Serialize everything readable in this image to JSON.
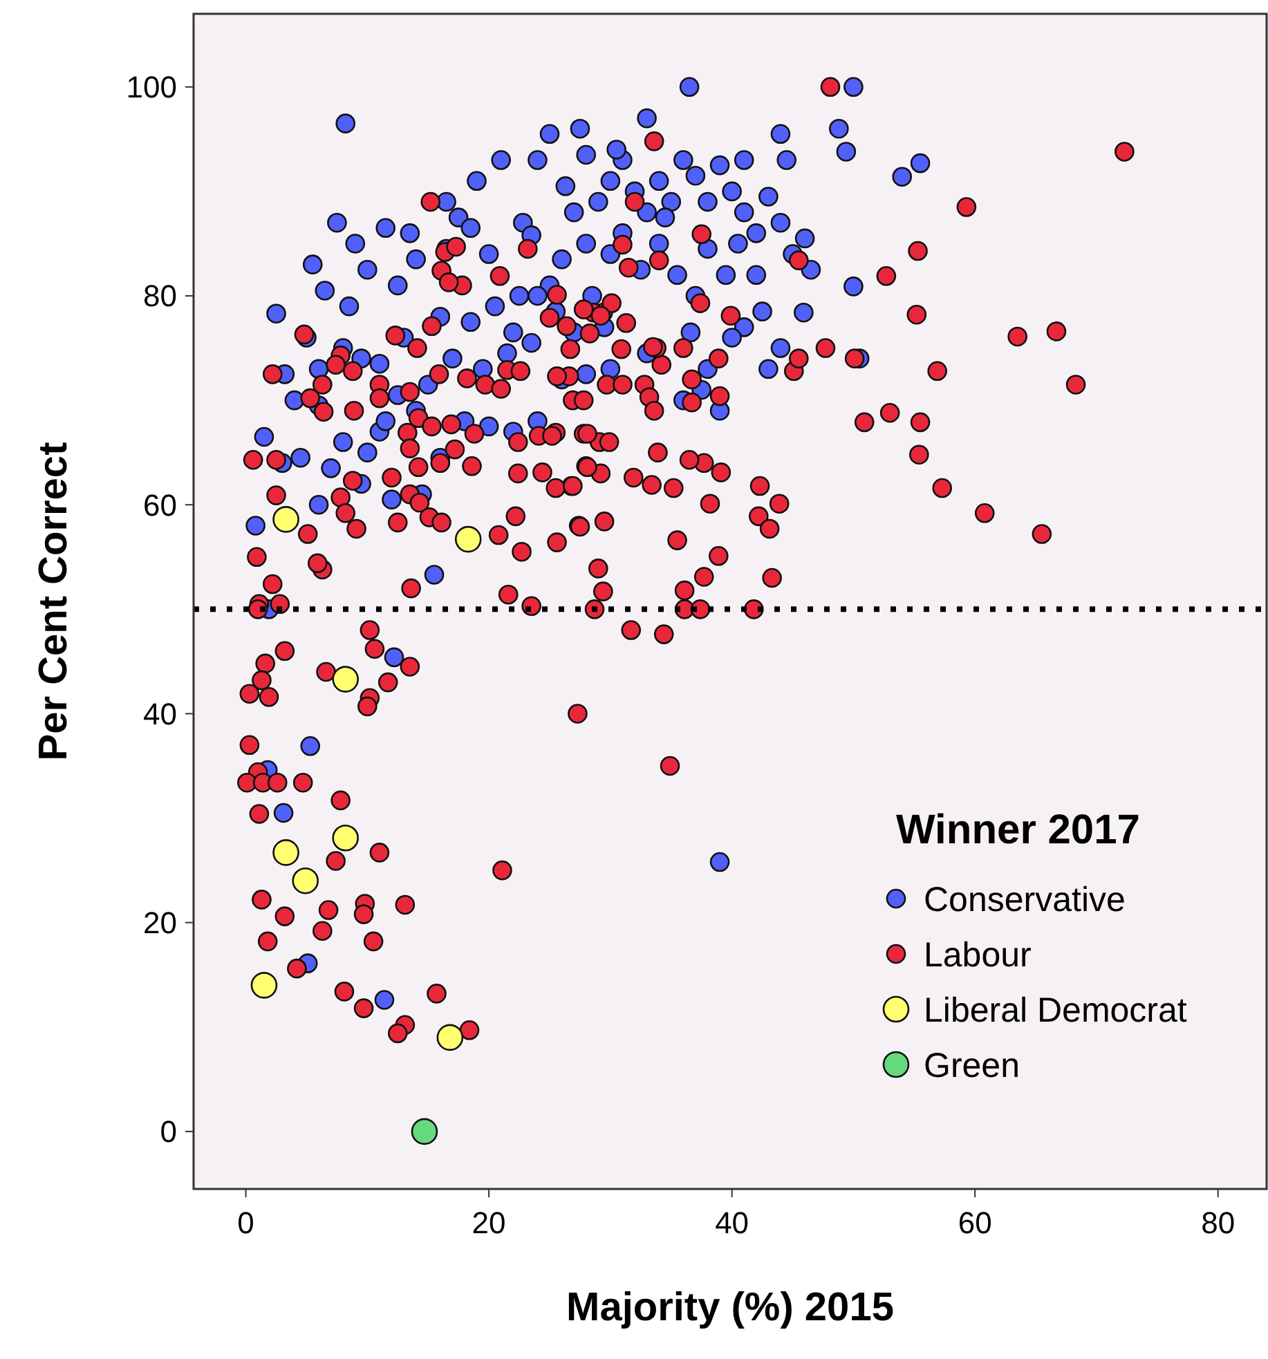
{
  "chart_data": {
    "type": "scatter",
    "xlabel": "Majority (%) 2015",
    "ylabel": "Per Cent Correct",
    "legend_title": "Winner 2017",
    "legend": "bottom right",
    "marker": "circle",
    "grid": false,
    "xlim": [
      -4.3,
      84
    ],
    "ylim": [
      -5.5,
      107
    ],
    "xticks": [
      0,
      20,
      40,
      60,
      80
    ],
    "yticks": [
      0,
      20,
      40,
      60,
      80,
      100
    ],
    "ref_lines": [
      {
        "axis": "y",
        "value": 50,
        "color": "#000000",
        "line_style": "dotted"
      }
    ],
    "series": [
      {
        "name": "Conservative",
        "color": "#5060f8",
        "x": [
          8.2,
          36.5,
          50,
          49.4,
          48.8,
          54,
          55.5,
          41,
          44,
          44.5,
          33,
          27.5,
          25,
          24,
          21,
          19,
          17.5,
          18.5,
          22.8,
          16.5,
          7.5,
          9,
          11.5,
          13.5,
          14,
          10,
          12.5,
          8.5,
          6.5,
          2.5,
          5,
          1.5,
          0.8,
          3.2,
          4,
          6,
          3,
          4.5,
          7,
          8,
          10,
          11,
          12.5,
          14,
          15,
          17,
          19.5,
          21.5,
          23.5,
          22.5,
          25,
          26,
          28,
          27,
          29,
          30,
          31,
          32,
          33,
          34,
          35,
          36,
          37,
          38,
          39,
          40,
          41,
          42,
          43,
          44,
          45,
          46,
          46.5,
          45.9,
          44,
          43,
          41,
          39.5,
          38,
          37,
          35.5,
          34,
          32.5,
          31,
          30,
          28.5,
          29.5,
          27,
          25.5,
          24,
          22,
          20.5,
          18.5,
          16,
          13,
          11,
          9.5,
          8,
          6,
          9.5,
          12,
          14.5,
          16,
          18,
          20,
          22,
          24,
          26,
          28,
          30,
          33,
          36.6,
          38,
          40,
          42,
          50,
          50.5,
          37.5,
          36,
          39,
          12.2,
          5.3,
          1.8,
          3.1,
          5.1,
          11.4,
          39,
          1.9,
          15.5,
          6,
          11.5,
          5.5,
          20,
          16.5,
          30.5,
          34.5,
          40.5,
          23.5,
          26.3,
          28,
          42.5
        ],
        "values": [
          96.5,
          100,
          100,
          93.8,
          96,
          91.4,
          92.7,
          93,
          95.5,
          93,
          97,
          96,
          95.5,
          93,
          93,
          91,
          87.5,
          86.5,
          87,
          84.5,
          87,
          85,
          86.5,
          86,
          83.5,
          82.5,
          81,
          79,
          80.5,
          78.3,
          76,
          66.5,
          58,
          72.5,
          70,
          69.5,
          64,
          64.5,
          63.5,
          66,
          65,
          67,
          70.5,
          69,
          71.5,
          74,
          73,
          74.5,
          75.5,
          80,
          81,
          83.5,
          85,
          88,
          89,
          91,
          93,
          90,
          88,
          91,
          89,
          93,
          91.5,
          89,
          92.5,
          90,
          88,
          86,
          89.5,
          87,
          84,
          85.5,
          82.5,
          78.4,
          75,
          73,
          77,
          82,
          84.5,
          80,
          82,
          85,
          82.5,
          86,
          84,
          80,
          77,
          76.5,
          78.5,
          80,
          76.5,
          79,
          77.5,
          78,
          76,
          73.5,
          74,
          75,
          73,
          62,
          60.5,
          61,
          64.5,
          68,
          67.5,
          67,
          68,
          72,
          72.5,
          73,
          74.5,
          76.5,
          73,
          76,
          82,
          80.9,
          74,
          71,
          70,
          69,
          45.4,
          36.9,
          34.6,
          30.5,
          16.1,
          12.6,
          25.8,
          50,
          53.3,
          60,
          68,
          83,
          84,
          89,
          94,
          87.5,
          85,
          85.8,
          90.5,
          93.5,
          78.5
        ]
      },
      {
        "name": "Labour",
        "color": "#e8283a",
        "x": [
          72.3,
          59.3,
          55.3,
          52.7,
          55.2,
          63.5,
          66.7,
          56.9,
          68.3,
          50.1,
          47.7,
          50.9,
          53,
          55.5,
          55.4,
          57.3,
          60.8,
          65.5,
          48.1,
          45.5,
          45.1,
          45.5,
          42.3,
          43.9,
          42.2,
          43.1,
          43.3,
          38.9,
          37.7,
          36.1,
          35.5,
          38.2,
          39.1,
          37.7,
          36.5,
          33.9,
          35.2,
          33.4,
          31.9,
          29.5,
          27.4,
          29,
          29.4,
          28.7,
          36.1,
          41.8,
          31.7,
          34.4,
          29.1,
          28,
          29.2,
          26.4,
          28.3,
          29.4,
          31.3,
          30.1,
          28.6,
          26.7,
          30.9,
          34.2,
          33.8,
          36,
          38.9,
          39.9,
          37.4,
          37.5,
          34,
          31.5,
          31,
          32,
          33.6,
          29.7,
          31,
          32.8,
          33.2,
          33.6,
          36.7,
          36.7,
          39,
          26.6,
          26.9,
          27.8,
          25.5,
          27.8,
          29.9,
          25.6,
          26.8,
          15.2,
          23.2,
          25.6,
          20.9,
          16.4,
          17.3,
          16.1,
          17.8,
          16.7,
          15.3,
          14.1,
          12.3,
          4.8,
          25,
          27.8,
          29.2,
          33.5,
          7.8,
          7.4,
          8.8,
          2.2,
          6.3,
          5.3,
          6.4,
          8.9,
          11,
          11,
          13.5,
          15.9,
          18.2,
          19.7,
          21,
          21.5,
          22.6,
          25.6,
          14.2,
          15.3,
          16.9,
          18.8,
          13.3,
          13.5,
          14.2,
          16,
          18.6,
          17.2,
          22.4,
          24.1,
          25.2,
          28.1,
          22.4,
          24.4,
          25.5,
          26.9,
          28.1,
          0.6,
          2.5,
          8.8,
          7.8,
          8.2,
          9.1,
          12,
          13.5,
          14.3,
          15.1,
          16.1,
          12.5,
          2.5,
          5.1,
          6.3,
          5.9,
          0.9,
          2.2,
          1.1,
          2.8,
          13.6,
          22.2,
          20.8,
          22.7,
          27.5,
          21.6,
          23.5,
          37.4,
          1,
          10.2,
          10.6,
          13.5,
          11.7,
          10.2,
          10,
          6.6,
          3.2,
          1.6,
          1.3,
          0.3,
          1.9,
          27.3,
          34.9,
          0.3,
          1,
          0.1,
          1.4,
          2.6,
          4.7,
          7.8,
          1.1,
          7.4,
          11,
          21.1,
          1.3,
          3.2,
          6.8,
          9.8,
          9.7,
          13.1,
          6.3,
          10.5,
          1.8,
          4.2,
          8.1,
          9.7,
          13.1,
          12.5,
          15.7,
          18.4
        ],
        "values": [
          93.8,
          88.5,
          84.3,
          81.9,
          78.2,
          76.1,
          76.6,
          72.8,
          71.5,
          74,
          75,
          67.9,
          68.8,
          67.9,
          64.8,
          61.6,
          59.2,
          57.2,
          100,
          83.4,
          72.8,
          74,
          61.8,
          60.1,
          58.9,
          57.7,
          53,
          55.1,
          53.1,
          51.8,
          56.6,
          60.1,
          63.1,
          64,
          64.3,
          65,
          61.6,
          61.9,
          62.6,
          58.4,
          58,
          53.9,
          51.7,
          50,
          50,
          50,
          48,
          47.6,
          66,
          63.7,
          63,
          77.1,
          76.4,
          78.4,
          77.4,
          79.3,
          78.4,
          74.9,
          74.9,
          73.4,
          75,
          75,
          74,
          78.1,
          79.3,
          85.9,
          83.4,
          82.7,
          84.9,
          89,
          94.8,
          71.5,
          71.5,
          71.5,
          70.3,
          69,
          72,
          69.8,
          70.4,
          72.3,
          70,
          70,
          66.9,
          66.8,
          66,
          56.4,
          61.8,
          89,
          84.5,
          80.1,
          81.9,
          84.2,
          84.7,
          82.4,
          81,
          81.3,
          77.1,
          75,
          76.2,
          76.3,
          77.9,
          78.7,
          78.1,
          75.1,
          74.3,
          73.4,
          72.8,
          72.5,
          71.5,
          70.2,
          68.9,
          69,
          71.5,
          70.2,
          70.8,
          72.5,
          72.1,
          71.5,
          71.1,
          72.9,
          72.8,
          72.3,
          68.3,
          67.5,
          67.7,
          66.8,
          66.9,
          65.4,
          63.6,
          64,
          63.7,
          65.3,
          66,
          66.6,
          66.6,
          66.8,
          63,
          63.1,
          61.6,
          61.8,
          63.6,
          64.3,
          64.3,
          62.3,
          60.7,
          59.2,
          57.7,
          62.6,
          61,
          60.2,
          58.8,
          58.3,
          58.3,
          60.9,
          57.2,
          53.8,
          54.4,
          55,
          52.4,
          50.5,
          50.5,
          52,
          58.9,
          57.1,
          55.5,
          57.9,
          51.4,
          50.3,
          50,
          50,
          48,
          46.2,
          44.5,
          43,
          41.5,
          40.7,
          44,
          46,
          44.8,
          43.2,
          41.9,
          41.6,
          40,
          35,
          37,
          34.4,
          33.4,
          33.4,
          33.4,
          33.4,
          31.7,
          30.4,
          25.9,
          26.7,
          25,
          22.2,
          20.6,
          21.2,
          21.8,
          20.8,
          21.7,
          19.2,
          18.2,
          18.2,
          15.6,
          13.4,
          11.8,
          10.2,
          9.4,
          13.2,
          9.7
        ]
      },
      {
        "name": "Liberal Democrat",
        "color": "#ffff70",
        "x": [
          3.3,
          18.3,
          8.2,
          3.3,
          4.9,
          8.2,
          1.5,
          16.8
        ],
        "values": [
          58.6,
          56.7,
          43.3,
          26.7,
          24,
          28.1,
          14,
          9
        ]
      },
      {
        "name": "Green",
        "color": "#66d97f",
        "x": [
          14.7
        ],
        "values": [
          0
        ]
      }
    ]
  }
}
